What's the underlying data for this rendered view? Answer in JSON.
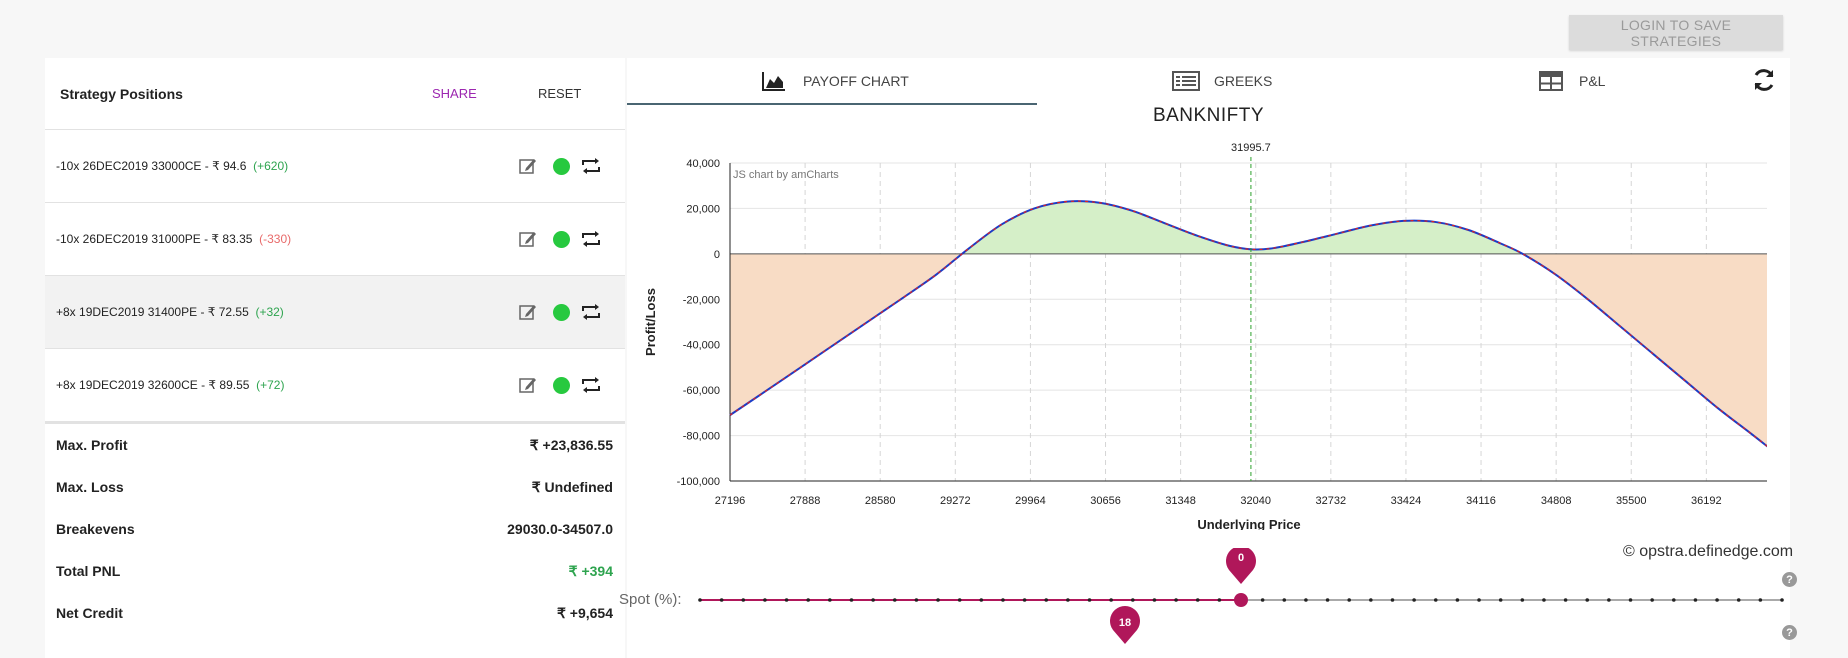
{
  "header": {
    "login_label": "LOGIN TO SAVE STRATEGIES"
  },
  "positions_panel": {
    "title": "Strategy Positions",
    "share_label": "SHARE",
    "reset_label": "RESET",
    "positions": [
      {
        "text": "-10x  26DEC2019  33000CE  - ₹ 94.6",
        "change": "(+620)",
        "change_color": "#2ea44f",
        "selected": false
      },
      {
        "text": "-10x  26DEC2019  31000PE  - ₹ 83.35",
        "change": "(-330)",
        "change_color": "#e86a6a",
        "selected": false
      },
      {
        "text": "+8x  19DEC2019  31400PE  - ₹ 72.55",
        "change": "(+32)",
        "change_color": "#2ea44f",
        "selected": true
      },
      {
        "text": "+8x  19DEC2019  32600CE  - ₹ 89.55",
        "change": "(+72)",
        "change_color": "#2ea44f",
        "selected": false
      }
    ]
  },
  "summary": {
    "max_profit_label": "Max. Profit",
    "max_profit_value": "₹ +23,836.55",
    "max_loss_label": "Max. Loss",
    "max_loss_value": "₹ Undefined",
    "breakevens_label": "Breakevens",
    "breakevens_value": "29030.0-34507.0",
    "total_pnl_label": "Total PNL",
    "total_pnl_value": "₹ +394",
    "net_credit_label": "Net Credit",
    "net_credit_value": "₹ +9,654"
  },
  "tabs": {
    "payoff": "PAYOFF CHART",
    "greeks": "GREEKS",
    "pnl": "P&L",
    "active": "payoff"
  },
  "chart_data": {
    "type": "area",
    "title": "BANKNIFTY",
    "xlabel": "Underlying Price",
    "ylabel": "Profit/Loss",
    "watermark": "JS chart by amCharts",
    "x_ticks": [
      "27196",
      "27888",
      "28580",
      "29272",
      "29964",
      "30656",
      "31348",
      "32040",
      "32732",
      "33424",
      "34116",
      "34808",
      "35500",
      "36192"
    ],
    "y_ticks": [
      "40,000",
      "20,000",
      "0",
      "-20,000",
      "-40,000",
      "-60,000",
      "-80,000",
      "-100,000"
    ],
    "xlim": [
      27196,
      36760
    ],
    "ylim": [
      -100000,
      40000
    ],
    "spot_marker": {
      "x": 31995.7,
      "label": "31995.7"
    },
    "series": [
      {
        "x": [
          27196,
          27600,
          28000,
          28400,
          28800,
          29100,
          29400,
          29700,
          30000,
          30300,
          30600,
          30900,
          31200,
          31500,
          31800,
          32000,
          32200,
          32500,
          32800,
          33100,
          33400,
          33700,
          34000,
          34300,
          34500,
          34800,
          35100,
          35400,
          35700,
          36000,
          36300,
          36600,
          36760
        ],
        "values": [
          -71000,
          -58000,
          -45000,
          -32000,
          -19000,
          -9000,
          2500,
          13000,
          20000,
          23000,
          22500,
          19000,
          13500,
          8000,
          3500,
          2000,
          2500,
          5500,
          9000,
          12500,
          14500,
          14000,
          10500,
          4500,
          0,
          -9000,
          -20000,
          -32000,
          -44000,
          -56000,
          -68000,
          -79000,
          -85000
        ]
      }
    ],
    "colors": {
      "profit_fill": "#d5efc8",
      "loss_fill": "#f8dcc5",
      "line_blue": "#1a3cc8",
      "line_dash": "#e02020",
      "spot_line": "#2ca02c"
    }
  },
  "slider": {
    "label": "Spot (%):",
    "value_top": "0",
    "value_bottom": "18",
    "fill_fraction": 0.5,
    "color": "#b0175a"
  },
  "credit": "© opstra.definedge.com"
}
